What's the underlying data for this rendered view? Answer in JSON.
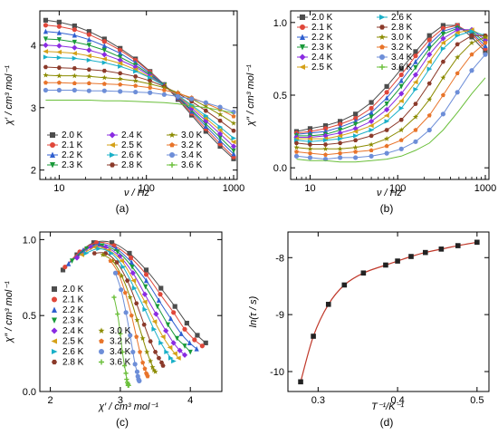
{
  "panels_meta": {
    "temps": [
      "2.0 K",
      "2.1 K",
      "2.2 K",
      "2.3 K",
      "2.4 K",
      "2.5 K",
      "2.6 K",
      "2.8 K",
      "3.0 K",
      "3.2 K",
      "3.4 K",
      "3.6 K"
    ],
    "colors": [
      "#4d4d4d",
      "#e0473a",
      "#2f5fd0",
      "#1a9a3a",
      "#8a2be2",
      "#d4a017",
      "#1ab0c8",
      "#8b3a2a",
      "#8b8b00",
      "#e8742a",
      "#6d8ed8",
      "#6abf3a"
    ],
    "markers": [
      "square",
      "circle",
      "triangle-up",
      "triangle-down",
      "diamond",
      "triangle-left",
      "triangle-right",
      "hexagon",
      "star",
      "pentagon",
      "circle",
      "plus"
    ]
  },
  "chart_data": [
    {
      "type": "line",
      "panel_label": "(a)",
      "xlabel": "ν / Hz",
      "ylabel": "χ′ / cm³ mol⁻¹",
      "xscale": "log",
      "xlim": [
        6,
        1100
      ],
      "ylim": [
        1.85,
        4.55
      ],
      "xticks": [
        10,
        100,
        1000
      ],
      "xticklabels": [
        "10",
        "100",
        "1000"
      ],
      "yticks": [
        2,
        3,
        4
      ],
      "yticklabels": [
        "2",
        "3",
        "4"
      ],
      "x": [
        7,
        10,
        15,
        22,
        33,
        50,
        75,
        110,
        160,
        230,
        330,
        480,
        700,
        1000
      ],
      "legend_position": "bottom-left",
      "series": [
        {
          "name": "2.0 K",
          "values": [
            4.4,
            4.37,
            4.31,
            4.22,
            4.1,
            3.95,
            3.78,
            3.58,
            3.37,
            3.13,
            2.88,
            2.62,
            2.38,
            2.18
          ]
        },
        {
          "name": "2.1 K",
          "values": [
            4.32,
            4.3,
            4.25,
            4.17,
            4.06,
            3.92,
            3.76,
            3.57,
            3.37,
            3.15,
            2.91,
            2.66,
            2.42,
            2.21
          ]
        },
        {
          "name": "2.2 K",
          "values": [
            4.22,
            4.2,
            4.16,
            4.09,
            3.99,
            3.87,
            3.72,
            3.55,
            3.37,
            3.16,
            2.94,
            2.7,
            2.47,
            2.26
          ]
        },
        {
          "name": "2.3 K",
          "values": [
            4.1,
            4.09,
            4.05,
            4.0,
            3.92,
            3.81,
            3.68,
            3.53,
            3.36,
            3.17,
            2.96,
            2.74,
            2.52,
            2.31
          ]
        },
        {
          "name": "2.4 K",
          "values": [
            4.0,
            3.99,
            3.96,
            3.92,
            3.85,
            3.76,
            3.65,
            3.51,
            3.35,
            3.18,
            2.99,
            2.79,
            2.58,
            2.38
          ]
        },
        {
          "name": "2.5 K",
          "values": [
            3.9,
            3.89,
            3.87,
            3.83,
            3.78,
            3.71,
            3.61,
            3.49,
            3.35,
            3.19,
            3.02,
            2.83,
            2.64,
            2.45
          ]
        },
        {
          "name": "2.6 K",
          "values": [
            3.81,
            3.8,
            3.79,
            3.76,
            3.72,
            3.66,
            3.58,
            3.48,
            3.35,
            3.2,
            3.04,
            2.87,
            2.69,
            2.51
          ]
        },
        {
          "name": "2.8 K",
          "values": [
            3.65,
            3.64,
            3.63,
            3.61,
            3.59,
            3.55,
            3.5,
            3.43,
            3.34,
            3.23,
            3.1,
            2.95,
            2.79,
            2.63
          ]
        },
        {
          "name": "3.0 K",
          "values": [
            3.52,
            3.51,
            3.51,
            3.5,
            3.48,
            3.46,
            3.43,
            3.38,
            3.32,
            3.24,
            3.14,
            3.02,
            2.89,
            2.75
          ]
        },
        {
          "name": "3.2 K",
          "values": [
            3.4,
            3.4,
            3.39,
            3.39,
            3.38,
            3.37,
            3.35,
            3.32,
            3.28,
            3.23,
            3.16,
            3.07,
            2.97,
            2.86
          ]
        },
        {
          "name": "3.4 K",
          "values": [
            3.28,
            3.28,
            3.28,
            3.27,
            3.27,
            3.26,
            3.25,
            3.24,
            3.21,
            3.18,
            3.14,
            3.08,
            3.01,
            2.93
          ]
        },
        {
          "name": "3.6 K",
          "values": [
            3.12,
            3.12,
            3.12,
            3.12,
            3.11,
            3.11,
            3.1,
            3.09,
            3.08,
            3.06,
            3.03,
            3.0,
            2.96,
            2.91
          ]
        }
      ]
    },
    {
      "type": "line",
      "panel_label": "(b)",
      "xlabel": "ν / Hz",
      "ylabel": "χ″ / cm³ mol⁻¹",
      "xscale": "log",
      "xlim": [
        6,
        1100
      ],
      "ylim": [
        -0.08,
        1.08
      ],
      "xticks": [
        10,
        100,
        1000
      ],
      "xticklabels": [
        "10",
        "100",
        "1000"
      ],
      "yticks": [
        0.0,
        0.5,
        1.0
      ],
      "yticklabels": [
        "0.0",
        "0.5",
        "1.0"
      ],
      "x": [
        7,
        10,
        15,
        22,
        33,
        50,
        75,
        110,
        160,
        230,
        330,
        480,
        700,
        1000
      ],
      "legend_position": "top-left",
      "series": [
        {
          "name": "2.0 K",
          "values": [
            0.25,
            0.27,
            0.29,
            0.32,
            0.37,
            0.45,
            0.56,
            0.68,
            0.8,
            0.91,
            0.98,
            0.98,
            0.9,
            0.8
          ]
        },
        {
          "name": "2.1 K",
          "values": [
            0.24,
            0.25,
            0.27,
            0.3,
            0.34,
            0.41,
            0.52,
            0.64,
            0.77,
            0.88,
            0.96,
            0.98,
            0.92,
            0.82
          ]
        },
        {
          "name": "2.2 K",
          "values": [
            0.23,
            0.24,
            0.25,
            0.28,
            0.32,
            0.38,
            0.48,
            0.6,
            0.73,
            0.85,
            0.94,
            0.97,
            0.93,
            0.84
          ]
        },
        {
          "name": "2.3 K",
          "values": [
            0.22,
            0.22,
            0.23,
            0.26,
            0.3,
            0.35,
            0.44,
            0.56,
            0.69,
            0.82,
            0.92,
            0.96,
            0.94,
            0.86
          ]
        },
        {
          "name": "2.4 K",
          "values": [
            0.21,
            0.21,
            0.22,
            0.24,
            0.27,
            0.32,
            0.4,
            0.51,
            0.64,
            0.78,
            0.89,
            0.95,
            0.95,
            0.88
          ]
        },
        {
          "name": "2.5 K",
          "values": [
            0.2,
            0.2,
            0.2,
            0.22,
            0.25,
            0.29,
            0.36,
            0.46,
            0.59,
            0.73,
            0.86,
            0.93,
            0.95,
            0.9
          ]
        },
        {
          "name": "2.6 K",
          "values": [
            0.19,
            0.18,
            0.19,
            0.2,
            0.22,
            0.26,
            0.32,
            0.41,
            0.54,
            0.68,
            0.82,
            0.91,
            0.94,
            0.91
          ]
        },
        {
          "name": "2.8 K",
          "values": [
            0.17,
            0.16,
            0.16,
            0.17,
            0.19,
            0.22,
            0.26,
            0.33,
            0.44,
            0.58,
            0.73,
            0.85,
            0.91,
            0.91
          ]
        },
        {
          "name": "3.0 K",
          "values": [
            0.14,
            0.13,
            0.13,
            0.13,
            0.14,
            0.16,
            0.2,
            0.26,
            0.35,
            0.47,
            0.62,
            0.76,
            0.86,
            0.9
          ]
        },
        {
          "name": "3.2 K",
          "values": [
            0.11,
            0.1,
            0.09,
            0.1,
            0.11,
            0.12,
            0.15,
            0.19,
            0.26,
            0.36,
            0.5,
            0.65,
            0.78,
            0.86
          ]
        },
        {
          "name": "3.4 K",
          "values": [
            0.08,
            0.07,
            0.06,
            0.07,
            0.07,
            0.08,
            0.1,
            0.13,
            0.18,
            0.26,
            0.37,
            0.52,
            0.67,
            0.78
          ]
        },
        {
          "name": "3.6 K",
          "values": [
            0.06,
            0.05,
            0.05,
            0.04,
            0.04,
            0.05,
            0.06,
            0.08,
            0.12,
            0.17,
            0.26,
            0.38,
            0.51,
            0.62
          ]
        }
      ]
    },
    {
      "type": "scatter",
      "panel_label": "(c)",
      "xlabel": "χ′ / cm³ mol⁻¹",
      "ylabel": "χ″ / cm³ mol⁻¹",
      "xlim": [
        1.85,
        4.45
      ],
      "ylim": [
        0.0,
        1.05
      ],
      "xticks": [
        2,
        3,
        4
      ],
      "xticklabels": [
        "2",
        "3",
        "4"
      ],
      "yticks": [
        0.0,
        0.5,
        1.0
      ],
      "yticklabels": [
        "0.0",
        "0.5",
        "1.0"
      ],
      "legend_position": "bottom-left",
      "series": [
        {
          "name": "2.0 K",
          "x": [
            2.18,
            2.38,
            2.62,
            2.88,
            3.13,
            3.37,
            3.58,
            3.78,
            3.95,
            4.1,
            4.22
          ],
          "y": [
            0.8,
            0.9,
            0.98,
            0.98,
            0.91,
            0.8,
            0.68,
            0.56,
            0.45,
            0.37,
            0.32
          ]
        },
        {
          "name": "2.1 K",
          "x": [
            2.21,
            2.42,
            2.66,
            2.91,
            3.15,
            3.37,
            3.57,
            3.76,
            3.92,
            4.06,
            4.17
          ],
          "y": [
            0.82,
            0.92,
            0.98,
            0.96,
            0.88,
            0.77,
            0.64,
            0.52,
            0.41,
            0.34,
            0.3
          ]
        },
        {
          "name": "2.2 K",
          "x": [
            2.26,
            2.47,
            2.7,
            2.94,
            3.16,
            3.37,
            3.55,
            3.72,
            3.87,
            3.99,
            4.09
          ],
          "y": [
            0.84,
            0.93,
            0.97,
            0.94,
            0.85,
            0.73,
            0.6,
            0.48,
            0.38,
            0.32,
            0.28
          ]
        },
        {
          "name": "2.3 K",
          "x": [
            2.31,
            2.52,
            2.74,
            2.96,
            3.17,
            3.36,
            3.53,
            3.68,
            3.81,
            3.92,
            4.0
          ],
          "y": [
            0.86,
            0.94,
            0.96,
            0.92,
            0.82,
            0.69,
            0.56,
            0.44,
            0.35,
            0.3,
            0.26
          ]
        },
        {
          "name": "2.4 K",
          "x": [
            2.38,
            2.58,
            2.79,
            2.99,
            3.18,
            3.35,
            3.51,
            3.65,
            3.76,
            3.85,
            3.92
          ],
          "y": [
            0.88,
            0.95,
            0.95,
            0.89,
            0.78,
            0.64,
            0.51,
            0.4,
            0.32,
            0.27,
            0.24
          ]
        },
        {
          "name": "2.5 K",
          "x": [
            2.45,
            2.64,
            2.83,
            3.02,
            3.19,
            3.35,
            3.49,
            3.61,
            3.71,
            3.78,
            3.83
          ],
          "y": [
            0.9,
            0.95,
            0.93,
            0.86,
            0.73,
            0.59,
            0.46,
            0.36,
            0.29,
            0.25,
            0.22
          ]
        },
        {
          "name": "2.6 K",
          "x": [
            2.51,
            2.69,
            2.87,
            3.04,
            3.2,
            3.35,
            3.48,
            3.58,
            3.66,
            3.72,
            3.76
          ],
          "y": [
            0.91,
            0.94,
            0.91,
            0.82,
            0.68,
            0.54,
            0.41,
            0.32,
            0.26,
            0.22,
            0.2
          ]
        },
        {
          "name": "2.8 K",
          "x": [
            2.63,
            2.79,
            2.95,
            3.1,
            3.23,
            3.34,
            3.43,
            3.5,
            3.55,
            3.59,
            3.61
          ],
          "y": [
            0.91,
            0.91,
            0.85,
            0.73,
            0.58,
            0.44,
            0.33,
            0.26,
            0.22,
            0.19,
            0.17
          ]
        },
        {
          "name": "3.0 K",
          "x": [
            2.75,
            2.89,
            3.02,
            3.14,
            3.24,
            3.32,
            3.38,
            3.43,
            3.46,
            3.48,
            3.5
          ],
          "y": [
            0.9,
            0.86,
            0.76,
            0.62,
            0.47,
            0.35,
            0.26,
            0.2,
            0.16,
            0.14,
            0.13
          ]
        },
        {
          "name": "3.2 K",
          "x": [
            2.86,
            2.97,
            3.07,
            3.16,
            3.23,
            3.28,
            3.32,
            3.35,
            3.37,
            3.38,
            3.39
          ],
          "y": [
            0.86,
            0.78,
            0.65,
            0.5,
            0.36,
            0.26,
            0.19,
            0.15,
            0.12,
            0.11,
            0.1
          ]
        },
        {
          "name": "3.4 K",
          "x": [
            2.93,
            3.01,
            3.08,
            3.14,
            3.18,
            3.21,
            3.24,
            3.25,
            3.26,
            3.27,
            3.27
          ],
          "y": [
            0.78,
            0.67,
            0.52,
            0.37,
            0.26,
            0.18,
            0.13,
            0.1,
            0.08,
            0.07,
            0.07
          ]
        },
        {
          "name": "3.6 K",
          "x": [
            2.91,
            2.96,
            3.0,
            3.03,
            3.06,
            3.08,
            3.09,
            3.1,
            3.11,
            3.11,
            3.12
          ],
          "y": [
            0.62,
            0.51,
            0.38,
            0.26,
            0.17,
            0.12,
            0.08,
            0.06,
            0.05,
            0.04,
            0.04
          ]
        }
      ]
    },
    {
      "type": "line",
      "panel_label": "(d)",
      "xlabel": "T⁻¹/K⁻¹",
      "ylabel": "ln(τ / s)",
      "xlim": [
        0.262,
        0.515
      ],
      "ylim": [
        -10.35,
        -7.55
      ],
      "xticks": [
        0.3,
        0.4,
        0.5
      ],
      "xticklabels": [
        "0.3",
        "0.4",
        "0.5"
      ],
      "yticks": [
        -10,
        -9,
        -8
      ],
      "yticklabels": [
        "-10",
        "-9",
        "-8"
      ],
      "x": [
        0.278,
        0.294,
        0.313,
        0.333,
        0.357,
        0.385,
        0.4,
        0.417,
        0.435,
        0.455,
        0.476,
        0.5
      ],
      "values": [
        -10.18,
        -9.38,
        -8.82,
        -8.48,
        -8.27,
        -8.13,
        -8.06,
        -7.98,
        -7.91,
        -7.85,
        -7.79,
        -7.73
      ],
      "fit_line": true
    }
  ]
}
